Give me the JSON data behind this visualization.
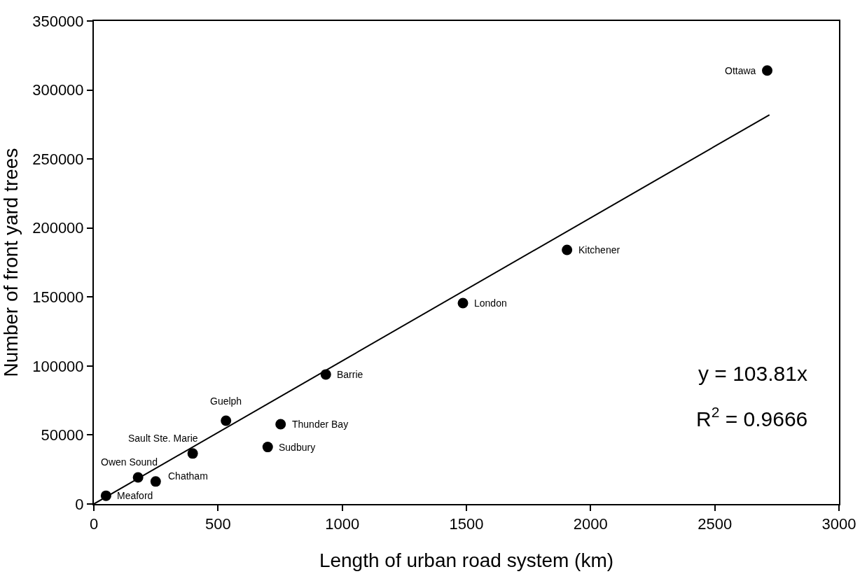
{
  "chart_data": {
    "type": "scatter",
    "xlabel": "Length of urban road system (km)",
    "ylabel": "Number of front yard trees",
    "xlim": [
      0,
      3000
    ],
    "xticks": [
      0,
      500,
      1000,
      1500,
      2000,
      2500,
      3000
    ],
    "ylim": [
      0,
      350000
    ],
    "yticks": [
      0,
      50000,
      100000,
      150000,
      200000,
      250000,
      300000,
      350000
    ],
    "marker": "circle",
    "series": [
      {
        "color": "#000000",
        "x": [
          49,
          178,
          249,
          398,
          532,
          700,
          752,
          934,
          1486,
          1905,
          2711
        ],
        "values": [
          6000,
          19300,
          16300,
          36600,
          60400,
          41300,
          57800,
          93900,
          145600,
          184100,
          314100
        ]
      },
      {
        "type": "line",
        "color": "#000000",
        "marker": "none",
        "line_style": "solid",
        "x": [
          0,
          2720
        ],
        "values": [
          0,
          282000
        ]
      }
    ],
    "annotations": [
      {
        "text": "Meaford",
        "x": 49,
        "y": 6000
      },
      {
        "text": "Owen Sound",
        "x": 178,
        "y": 19300
      },
      {
        "text": "Chatham",
        "x": 249,
        "y": 16300
      },
      {
        "text": "Sault Ste. Marie",
        "x": 398,
        "y": 36600
      },
      {
        "text": "Guelph",
        "x": 532,
        "y": 60400
      },
      {
        "text": "Sudbury",
        "x": 700,
        "y": 41300
      },
      {
        "text": "Thunder Bay",
        "x": 752,
        "y": 57800
      },
      {
        "text": "Barrie",
        "x": 934,
        "y": 93900
      },
      {
        "text": "London",
        "x": 1486,
        "y": 145600
      },
      {
        "text": "Kitchener",
        "x": 1905,
        "y": 184100
      },
      {
        "text": "Ottawa",
        "x": 2711,
        "y": 314100
      },
      "y = 103.81x",
      "R$^{2}$ = 0.9666"
    ]
  }
}
